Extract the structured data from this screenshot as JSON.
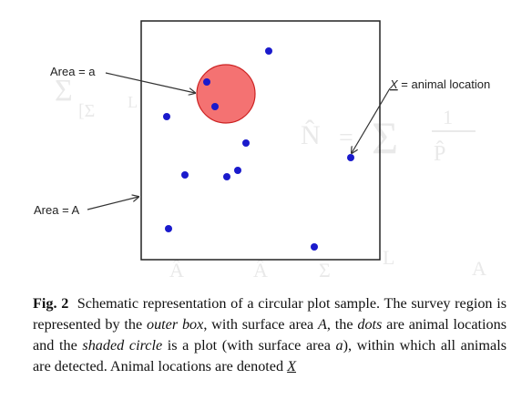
{
  "diagram": {
    "label_area_plot": "Area = a",
    "label_area_box": "Area = A",
    "label_animal_symbol": "X",
    "label_animal_text": " = animal location",
    "colors": {
      "box": "#222222",
      "dot": "#1a1acc",
      "circle_fill": "#f47272",
      "circle_stroke": "#cc2222",
      "arrow": "#333333"
    }
  },
  "caption": {
    "fig_label": "Fig. 2",
    "t1": "Schematic representation of a circular plot sample. The survey region is represented by the ",
    "outer_box": "outer box",
    "t2": ", with surface area ",
    "A": "A",
    "t3": ", the ",
    "dots": "dots",
    "t4": " are animal locations and the ",
    "shaded_circle": "shaded circle",
    "t5": " is a plot (with surface area ",
    "a": "a",
    "t6": "), within which all animals are detected. Animal locations are denoted ",
    "X": "X"
  }
}
